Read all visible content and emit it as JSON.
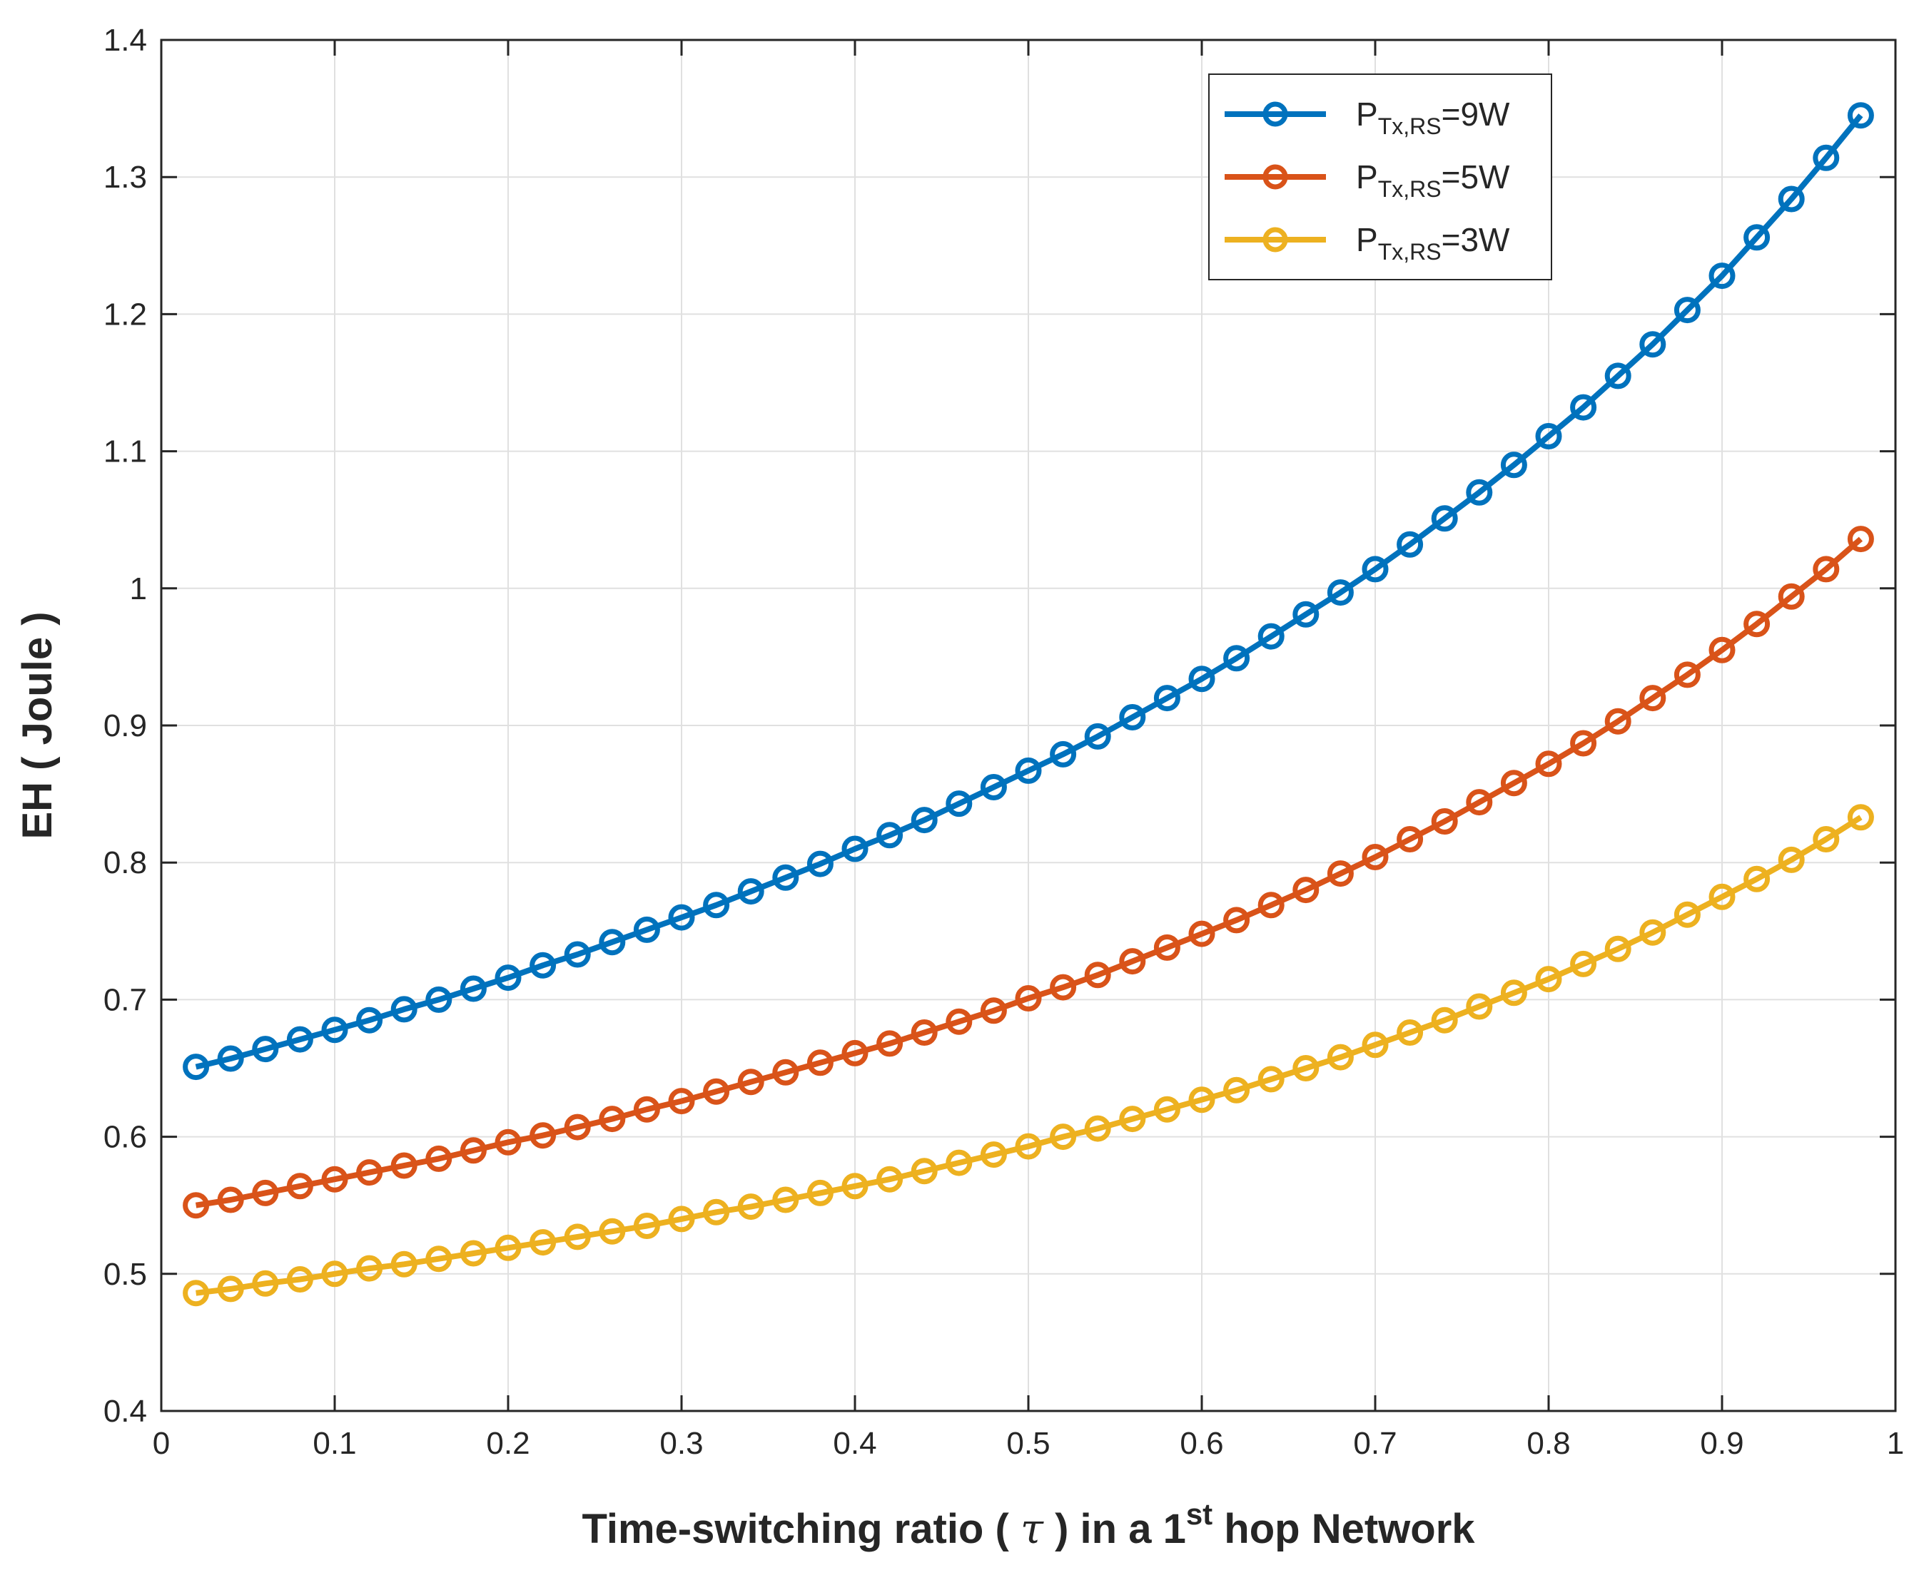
{
  "chart_data": {
    "type": "line",
    "xlabel": {
      "prefix": "Time-switching ratio ( ",
      "symbol": "τ",
      "middle": " ) in a 1",
      "superscript": "st",
      "suffix": " hop Network"
    },
    "ylabel": "EH ( Joule )",
    "xlim": [
      0,
      1
    ],
    "ylim": [
      0.4,
      1.4
    ],
    "xticks": [
      0,
      0.1,
      0.2,
      0.3,
      0.4,
      0.5,
      0.6,
      0.7,
      0.8,
      0.9,
      1
    ],
    "xtick_labels": [
      "0",
      "0.1",
      "0.2",
      "0.3",
      "0.4",
      "0.5",
      "0.6",
      "0.7",
      "0.8",
      "0.9",
      "1"
    ],
    "yticks": [
      0.4,
      0.5,
      0.6,
      0.7,
      0.8,
      0.9,
      1.0,
      1.1,
      1.2,
      1.3,
      1.4
    ],
    "ytick_labels": [
      "0.4",
      "0.5",
      "0.6",
      "0.7",
      "0.8",
      "0.9",
      "1",
      "1.1",
      "1.2",
      "1.3",
      "1.4"
    ],
    "grid": true,
    "legend_position": "top-right",
    "x": [
      0.02,
      0.04,
      0.06,
      0.08,
      0.1,
      0.12,
      0.14,
      0.16,
      0.18,
      0.2,
      0.22,
      0.24,
      0.26,
      0.28,
      0.3,
      0.32,
      0.34,
      0.36,
      0.38,
      0.4,
      0.42,
      0.44,
      0.46,
      0.48,
      0.5,
      0.52,
      0.54,
      0.56,
      0.58,
      0.6,
      0.62,
      0.64,
      0.66,
      0.68,
      0.7,
      0.72,
      0.74,
      0.76,
      0.78,
      0.8,
      0.82,
      0.84,
      0.86,
      0.88,
      0.9,
      0.92,
      0.94,
      0.96,
      0.98
    ],
    "series": [
      {
        "name": "P_{Tx,RS}=9W",
        "legend_main": "P",
        "legend_sub": "Tx,RS",
        "legend_suffix": "=9W",
        "color": "#0072BD",
        "values": [
          0.651,
          0.657,
          0.664,
          0.671,
          0.678,
          0.685,
          0.693,
          0.7,
          0.708,
          0.716,
          0.725,
          0.733,
          0.742,
          0.751,
          0.76,
          0.769,
          0.779,
          0.789,
          0.799,
          0.81,
          0.82,
          0.831,
          0.843,
          0.855,
          0.867,
          0.879,
          0.892,
          0.906,
          0.92,
          0.934,
          0.949,
          0.965,
          0.981,
          0.997,
          1.014,
          1.032,
          1.051,
          1.07,
          1.09,
          1.111,
          1.132,
          1.155,
          1.178,
          1.203,
          1.228,
          1.256,
          1.284,
          1.314,
          1.345
        ]
      },
      {
        "name": "P_{Tx,RS}=5W",
        "legend_main": "P",
        "legend_sub": "Tx,RS",
        "legend_suffix": "=5W",
        "color": "#D95319",
        "values": [
          0.55,
          0.554,
          0.559,
          0.564,
          0.569,
          0.574,
          0.579,
          0.584,
          0.59,
          0.596,
          0.601,
          0.607,
          0.613,
          0.62,
          0.626,
          0.633,
          0.64,
          0.647,
          0.654,
          0.661,
          0.668,
          0.676,
          0.684,
          0.692,
          0.701,
          0.709,
          0.718,
          0.728,
          0.738,
          0.748,
          0.758,
          0.769,
          0.78,
          0.792,
          0.804,
          0.817,
          0.83,
          0.844,
          0.858,
          0.872,
          0.887,
          0.903,
          0.92,
          0.937,
          0.955,
          0.974,
          0.994,
          1.014,
          1.036
        ]
      },
      {
        "name": "P_{Tx,RS}=3W",
        "legend_main": "P",
        "legend_sub": "Tx,RS",
        "legend_suffix": "=3W",
        "color": "#EDB120",
        "values": [
          0.486,
          0.489,
          0.493,
          0.496,
          0.5,
          0.504,
          0.507,
          0.511,
          0.515,
          0.519,
          0.523,
          0.527,
          0.531,
          0.535,
          0.54,
          0.545,
          0.549,
          0.554,
          0.559,
          0.564,
          0.569,
          0.575,
          0.581,
          0.587,
          0.593,
          0.6,
          0.606,
          0.613,
          0.62,
          0.627,
          0.634,
          0.642,
          0.65,
          0.658,
          0.667,
          0.676,
          0.685,
          0.695,
          0.705,
          0.715,
          0.726,
          0.737,
          0.749,
          0.762,
          0.775,
          0.788,
          0.802,
          0.817,
          0.833
        ]
      }
    ]
  }
}
